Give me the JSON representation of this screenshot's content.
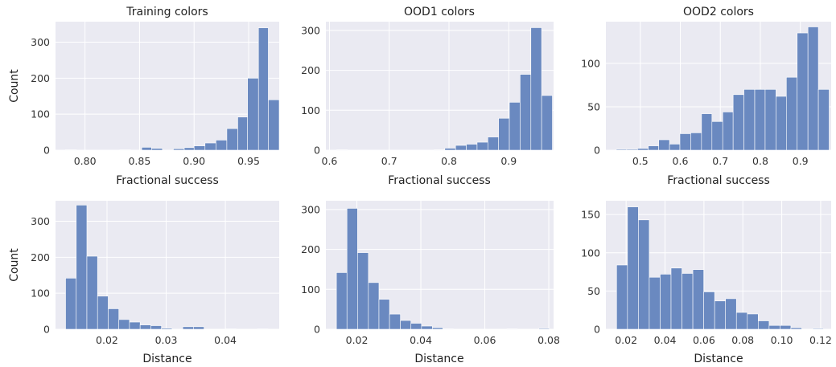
{
  "colors": {
    "background": "#eaeaf2",
    "grid": "#ffffff",
    "bar": "#6a89c0",
    "bar_edge": "#ffffff"
  },
  "chart_data": [
    {
      "type": "histogram",
      "title": "Training colors",
      "xlabel": "Fractional success",
      "ylabel": "Count",
      "xlim": [
        0.773,
        0.978
      ],
      "ylim": [
        0,
        357
      ],
      "xticks": [
        0.8,
        0.85,
        0.9,
        0.95
      ],
      "xtick_labels": [
        "0.80",
        "0.85",
        "0.90",
        "0.95"
      ],
      "yticks": [
        0,
        100,
        200,
        300
      ],
      "ytick_labels": [
        "0",
        "100",
        "200",
        "300"
      ],
      "grid": true,
      "bins": [
        [
          0.782,
          0.792,
          1
        ],
        [
          0.792,
          0.802,
          0
        ],
        [
          0.802,
          0.812,
          0
        ],
        [
          0.812,
          0.822,
          0
        ],
        [
          0.822,
          0.832,
          0
        ],
        [
          0.832,
          0.842,
          1
        ],
        [
          0.842,
          0.852,
          0
        ],
        [
          0.852,
          0.861,
          8
        ],
        [
          0.861,
          0.871,
          5
        ],
        [
          0.871,
          0.881,
          0
        ],
        [
          0.881,
          0.891,
          4
        ],
        [
          0.891,
          0.9,
          7
        ],
        [
          0.9,
          0.91,
          12
        ],
        [
          0.91,
          0.92,
          20
        ],
        [
          0.92,
          0.93,
          28
        ],
        [
          0.93,
          0.94,
          60
        ],
        [
          0.94,
          0.949,
          92
        ],
        [
          0.949,
          0.959,
          200
        ],
        [
          0.959,
          0.968,
          340
        ],
        [
          0.968,
          0.978,
          140
        ]
      ]
    },
    {
      "type": "histogram",
      "title": "OOD1 colors",
      "xlabel": "Fractional success",
      "ylabel": "",
      "xlim": [
        0.594,
        0.975
      ],
      "ylim": [
        0,
        322
      ],
      "xticks": [
        0.6,
        0.7,
        0.8,
        0.9
      ],
      "xtick_labels": [
        "0.6",
        "0.7",
        "0.8",
        "0.9"
      ],
      "yticks": [
        0,
        100,
        200,
        300
      ],
      "ytick_labels": [
        "0",
        "100",
        "200",
        "300"
      ],
      "grid": true,
      "bins": [
        [
          0.612,
          0.63,
          1
        ],
        [
          0.63,
          0.648,
          0
        ],
        [
          0.648,
          0.666,
          0
        ],
        [
          0.666,
          0.684,
          0
        ],
        [
          0.684,
          0.702,
          0
        ],
        [
          0.702,
          0.72,
          0
        ],
        [
          0.72,
          0.738,
          0
        ],
        [
          0.738,
          0.757,
          0
        ],
        [
          0.757,
          0.775,
          0
        ],
        [
          0.775,
          0.793,
          1
        ],
        [
          0.793,
          0.811,
          5
        ],
        [
          0.811,
          0.829,
          12
        ],
        [
          0.829,
          0.847,
          15
        ],
        [
          0.847,
          0.865,
          20
        ],
        [
          0.865,
          0.883,
          33
        ],
        [
          0.883,
          0.901,
          80
        ],
        [
          0.901,
          0.919,
          120
        ],
        [
          0.919,
          0.937,
          190
        ],
        [
          0.937,
          0.955,
          307
        ],
        [
          0.955,
          0.973,
          137
        ]
      ]
    },
    {
      "type": "histogram",
      "title": "OOD2 colors",
      "xlabel": "Fractional success",
      "ylabel": "",
      "xlim": [
        0.414,
        0.977
      ],
      "ylim": [
        0,
        148
      ],
      "xticks": [
        0.5,
        0.6,
        0.7,
        0.8,
        0.9
      ],
      "xtick_labels": [
        "0.5",
        "0.6",
        "0.7",
        "0.8",
        "0.9"
      ],
      "yticks": [
        0,
        50,
        100
      ],
      "ytick_labels": [
        "0",
        "50",
        "100"
      ],
      "grid": true,
      "bins": [
        [
          0.44,
          0.466,
          1
        ],
        [
          0.466,
          0.493,
          1
        ],
        [
          0.493,
          0.52,
          2
        ],
        [
          0.52,
          0.546,
          5
        ],
        [
          0.546,
          0.573,
          12
        ],
        [
          0.573,
          0.599,
          7
        ],
        [
          0.599,
          0.626,
          19
        ],
        [
          0.626,
          0.653,
          20
        ],
        [
          0.653,
          0.679,
          42
        ],
        [
          0.679,
          0.706,
          33
        ],
        [
          0.706,
          0.732,
          44
        ],
        [
          0.732,
          0.759,
          64
        ],
        [
          0.759,
          0.786,
          70
        ],
        [
          0.786,
          0.812,
          70
        ],
        [
          0.812,
          0.839,
          70
        ],
        [
          0.839,
          0.865,
          62
        ],
        [
          0.865,
          0.892,
          84
        ],
        [
          0.892,
          0.919,
          135
        ],
        [
          0.919,
          0.945,
          142
        ],
        [
          0.945,
          0.972,
          70
        ]
      ]
    },
    {
      "type": "histogram",
      "title": "",
      "xlabel": "Distance",
      "ylabel": "Count",
      "xlim": [
        0.0113,
        0.0491
      ],
      "ylim": [
        0,
        357
      ],
      "xticks": [
        0.02,
        0.03,
        0.04
      ],
      "xtick_labels": [
        "0.02",
        "0.03",
        "0.04"
      ],
      "yticks": [
        0,
        100,
        200,
        300
      ],
      "ytick_labels": [
        "0",
        "100",
        "200",
        "300"
      ],
      "grid": true,
      "bins": [
        [
          0.013,
          0.0148,
          142
        ],
        [
          0.0148,
          0.0166,
          345
        ],
        [
          0.0166,
          0.0184,
          203
        ],
        [
          0.0184,
          0.0202,
          92
        ],
        [
          0.0202,
          0.022,
          57
        ],
        [
          0.022,
          0.0238,
          27
        ],
        [
          0.0238,
          0.0256,
          20
        ],
        [
          0.0256,
          0.0274,
          12
        ],
        [
          0.0274,
          0.0292,
          10
        ],
        [
          0.0292,
          0.031,
          3
        ],
        [
          0.031,
          0.0328,
          0
        ],
        [
          0.0328,
          0.0346,
          7
        ],
        [
          0.0346,
          0.0364,
          7
        ],
        [
          0.0364,
          0.0382,
          0
        ],
        [
          0.0382,
          0.04,
          0
        ],
        [
          0.04,
          0.0418,
          1
        ],
        [
          0.0418,
          0.0436,
          0
        ],
        [
          0.0436,
          0.0454,
          0
        ],
        [
          0.0454,
          0.0472,
          1
        ]
      ]
    },
    {
      "type": "histogram",
      "title": "",
      "xlabel": "Distance",
      "ylabel": "",
      "xlim": [
        0.0103,
        0.0815
      ],
      "ylim": [
        0,
        322
      ],
      "xticks": [
        0.02,
        0.04,
        0.06,
        0.08
      ],
      "xtick_labels": [
        "0.02",
        "0.04",
        "0.06",
        "0.08"
      ],
      "yticks": [
        0,
        100,
        200,
        300
      ],
      "ytick_labels": [
        "0",
        "100",
        "200",
        "300"
      ],
      "grid": true,
      "bins": [
        [
          0.0136,
          0.0169,
          142
        ],
        [
          0.0169,
          0.0202,
          303
        ],
        [
          0.0202,
          0.0236,
          192
        ],
        [
          0.0236,
          0.0269,
          117
        ],
        [
          0.0269,
          0.0302,
          75
        ],
        [
          0.0302,
          0.0336,
          38
        ],
        [
          0.0336,
          0.0369,
          22
        ],
        [
          0.0369,
          0.0402,
          15
        ],
        [
          0.0402,
          0.0436,
          8
        ],
        [
          0.0436,
          0.0469,
          4
        ],
        [
          0.0469,
          0.0502,
          1
        ],
        [
          0.0502,
          0.0535,
          0
        ],
        [
          0.0535,
          0.0569,
          0
        ],
        [
          0.0569,
          0.0602,
          0
        ],
        [
          0.0602,
          0.0635,
          0
        ],
        [
          0.0635,
          0.0669,
          0
        ],
        [
          0.0669,
          0.0702,
          1
        ],
        [
          0.0702,
          0.0735,
          0
        ],
        [
          0.0735,
          0.0769,
          0
        ],
        [
          0.0769,
          0.0802,
          2
        ]
      ]
    },
    {
      "type": "histogram",
      "title": "",
      "xlabel": "Distance",
      "ylabel": "",
      "xlim": [
        0.0096,
        0.1254
      ],
      "ylim": [
        0,
        168
      ],
      "xticks": [
        0.02,
        0.04,
        0.06,
        0.08,
        0.1,
        0.12
      ],
      "xtick_labels": [
        "0.02",
        "0.04",
        "0.06",
        "0.08",
        "0.10",
        "0.12"
      ],
      "yticks": [
        0,
        50,
        100,
        150
      ],
      "ytick_labels": [
        "0",
        "50",
        "100",
        "150"
      ],
      "grid": true,
      "bins": [
        [
          0.0151,
          0.0207,
          84
        ],
        [
          0.0207,
          0.0263,
          160
        ],
        [
          0.0263,
          0.0319,
          143
        ],
        [
          0.0319,
          0.0375,
          68
        ],
        [
          0.0375,
          0.0431,
          72
        ],
        [
          0.0431,
          0.0487,
          80
        ],
        [
          0.0487,
          0.0543,
          73
        ],
        [
          0.0543,
          0.0599,
          78
        ],
        [
          0.0599,
          0.0655,
          49
        ],
        [
          0.0655,
          0.0711,
          37
        ],
        [
          0.0711,
          0.0767,
          40
        ],
        [
          0.0767,
          0.0823,
          22
        ],
        [
          0.0823,
          0.0879,
          20
        ],
        [
          0.0879,
          0.0935,
          11
        ],
        [
          0.0935,
          0.0991,
          5
        ],
        [
          0.0991,
          0.1047,
          5
        ],
        [
          0.1047,
          0.1103,
          2
        ],
        [
          0.1103,
          0.1159,
          0
        ],
        [
          0.1159,
          0.1215,
          1
        ]
      ]
    }
  ]
}
